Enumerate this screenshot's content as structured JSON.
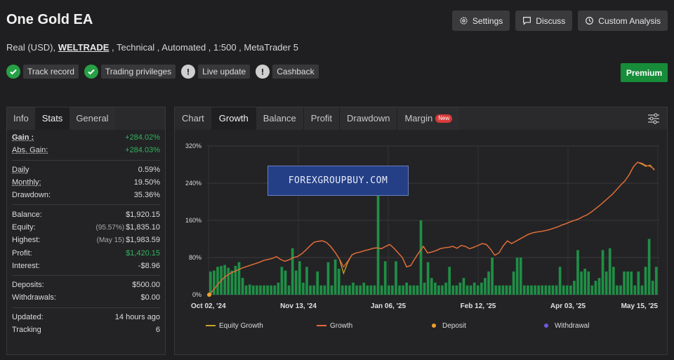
{
  "header": {
    "title": "One Gold EA",
    "account_type": "Real (USD), ",
    "broker": "WELTRADE",
    "details": " , Technical , Automated , 1:500 , MetaTrader 5",
    "buttons": {
      "settings": "Settings",
      "discuss": "Discuss",
      "custom": "Custom Analysis"
    },
    "premium": "Premium"
  },
  "badges": [
    {
      "label": "Track record",
      "status": "ok"
    },
    {
      "label": "Trading privileges",
      "status": "ok"
    },
    {
      "label": "Live update",
      "status": "warn"
    },
    {
      "label": "Cashback",
      "status": "warn"
    }
  ],
  "left_tabs": {
    "info": "Info",
    "stats": "Stats",
    "general": "General"
  },
  "stats": {
    "gain": {
      "k": "Gain :",
      "v": "+284.02%"
    },
    "abs_gain": {
      "k": "Abs. Gain:",
      "v": "+284.03%"
    },
    "daily": {
      "k": "Daily",
      "v": "0.59%"
    },
    "monthly": {
      "k": "Monthly:",
      "v": "19.50%"
    },
    "drawdown": {
      "k": "Drawdown:",
      "v": "35.36%"
    },
    "balance": {
      "k": "Balance:",
      "v": "$1,920.15"
    },
    "equity": {
      "k": "Equity:",
      "sub": "(95.57%)",
      "v": "$1,835.10"
    },
    "highest": {
      "k": "Highest:",
      "sub": "(May 15)",
      "v": "$1,983.59"
    },
    "profit": {
      "k": "Profit:",
      "v": "$1,420.15"
    },
    "interest": {
      "k": "Interest:",
      "v": "-$8.96"
    },
    "deposits": {
      "k": "Deposits:",
      "v": "$500.00"
    },
    "withdrawals": {
      "k": "Withdrawals:",
      "v": "$0.00"
    },
    "updated": {
      "k": "Updated:",
      "v": "14 hours ago"
    },
    "tracking": {
      "k": "Tracking",
      "v": "6"
    }
  },
  "chart_tabs": {
    "chart": "Chart",
    "growth": "Growth",
    "balance": "Balance",
    "profit": "Profit",
    "drawdown": "Drawdown",
    "margin": "Margin",
    "new_tag": "New"
  },
  "watermark": "FOREXGROUPBUY.COM",
  "colors": {
    "growth": "#e8683a",
    "equity": "#c9a227",
    "bars": "#1f8f46",
    "deposit": "#f0a030",
    "withdrawal": "#6b5be0"
  },
  "chart_data": {
    "type": "line",
    "ylim": [
      0,
      320
    ],
    "yticks": [
      "0%",
      "80%",
      "160%",
      "240%",
      "320%"
    ],
    "xticks": [
      "Oct 02, '24",
      "Nov 13, '24",
      "Jan 06, '25",
      "Feb 12, '25",
      "Apr 03, '25",
      "May 15, '25"
    ],
    "legend": [
      "Equity Growth",
      "Growth",
      "Deposit",
      "Withdrawal"
    ],
    "series": [
      {
        "name": "Growth",
        "values": [
          0,
          10,
          22,
          32,
          40,
          46,
          50,
          54,
          58,
          61,
          64,
          67,
          70,
          74,
          76,
          78,
          82,
          76,
          72,
          75,
          80,
          82,
          88,
          96,
          105,
          113,
          115,
          116,
          112,
          103,
          91,
          77,
          60,
          72,
          86,
          90,
          92,
          95,
          97,
          100,
          101,
          99,
          104,
          108,
          100,
          90,
          80,
          60,
          63,
          78,
          92,
          104,
          90,
          92,
          95,
          99,
          101,
          102,
          104,
          100,
          106,
          104,
          99,
          102,
          106,
          110,
          108,
          98,
          85,
          90,
          105,
          116,
          110,
          115,
          120,
          125,
          130,
          133,
          135,
          136,
          138,
          140,
          143,
          146,
          150,
          153,
          157,
          160,
          163,
          168,
          172,
          178,
          185,
          192,
          200,
          208,
          216,
          226,
          236,
          245,
          258,
          275,
          285,
          283,
          278,
          276,
          270
        ]
      },
      {
        "name": "Equity Growth",
        "values": [
          0,
          10,
          22,
          32,
          40,
          46,
          50,
          54,
          58,
          61,
          64,
          67,
          70,
          74,
          76,
          78,
          82,
          76,
          72,
          75,
          80,
          82,
          88,
          96,
          105,
          113,
          115,
          116,
          112,
          103,
          91,
          77,
          46,
          70,
          86,
          90,
          92,
          95,
          97,
          100,
          101,
          99,
          104,
          108,
          100,
          90,
          80,
          60,
          63,
          78,
          92,
          104,
          90,
          92,
          95,
          99,
          101,
          102,
          104,
          100,
          106,
          104,
          99,
          102,
          106,
          110,
          108,
          98,
          85,
          90,
          105,
          116,
          110,
          115,
          120,
          125,
          130,
          133,
          135,
          136,
          138,
          140,
          143,
          146,
          150,
          153,
          157,
          160,
          163,
          168,
          172,
          178,
          185,
          192,
          200,
          208,
          216,
          226,
          236,
          245,
          258,
          275,
          285,
          281,
          276,
          279,
          268
        ]
      },
      {
        "name": "bars",
        "values": [
          50,
          52,
          60,
          62,
          64,
          58,
          52,
          62,
          70,
          36,
          20,
          22,
          20,
          20,
          20,
          20,
          20,
          20,
          20,
          26,
          60,
          52,
          20,
          100,
          52,
          72,
          26,
          60,
          20,
          20,
          50,
          20,
          20,
          70,
          20,
          76,
          56,
          20,
          20,
          20,
          26,
          20,
          20,
          26,
          20,
          20,
          20,
          260,
          20,
          72,
          20,
          20,
          72,
          20,
          20,
          26,
          20,
          20,
          20,
          160,
          26,
          70,
          36,
          26,
          20,
          20,
          26,
          60,
          20,
          20,
          26,
          36,
          20,
          20,
          26,
          20,
          26,
          36,
          50,
          80,
          20,
          20,
          20,
          20,
          20,
          50,
          80,
          80,
          20,
          20,
          20,
          20,
          20,
          20,
          20,
          20,
          20,
          20,
          60,
          20,
          20,
          20,
          30,
          96,
          50,
          56,
          50,
          20,
          30,
          36,
          96,
          50,
          100,
          60,
          20,
          20,
          50,
          50,
          50,
          20,
          50,
          20,
          60,
          120,
          30,
          60
        ]
      }
    ]
  }
}
